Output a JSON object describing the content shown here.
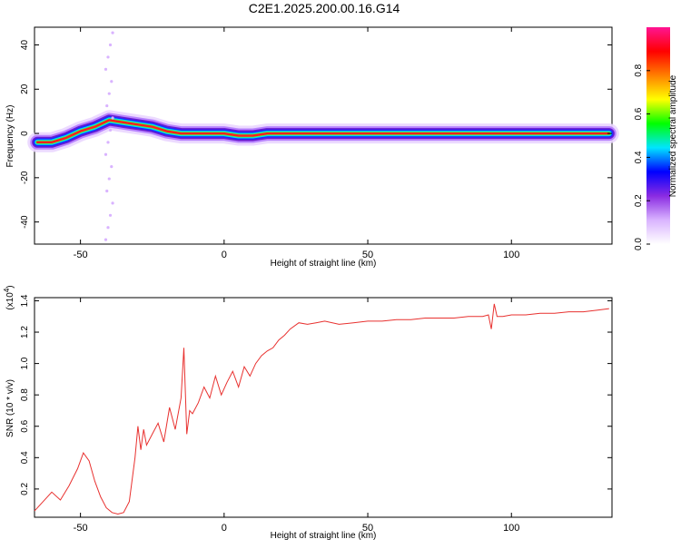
{
  "title": "C2E1.2025.200.00.16.G14",
  "chart_data": [
    {
      "type": "heatmap",
      "xlabel": "Height of straight line (km)",
      "ylabel": "Frequency (Hz)",
      "xlim": [
        -66,
        135
      ],
      "ylim": [
        -50,
        48
      ],
      "xticks": [
        "-50",
        "0",
        "50",
        "100"
      ],
      "xtick_values": [
        -50,
        0,
        50,
        100
      ],
      "yticks": [
        "40",
        "20",
        "0",
        "-20",
        "-40"
      ],
      "ytick_values": [
        40,
        20,
        0,
        -20,
        -40
      ],
      "ridge": {
        "x": [
          -65,
          -60,
          -55,
          -50,
          -45,
          -40,
          -35,
          -30,
          -25,
          -20,
          -15,
          -10,
          -5,
          0,
          5,
          10,
          15,
          20,
          30,
          50,
          80,
          100,
          134
        ],
        "y": [
          -4,
          -4,
          -2,
          1,
          3,
          6,
          5,
          4,
          3,
          1,
          0,
          0,
          0,
          0,
          -1,
          -1,
          0,
          0,
          0,
          0,
          0,
          0,
          0
        ]
      },
      "colorbar": {
        "label": "Normalized spectral amplitude",
        "ticks": [
          "0.0",
          "0.2",
          "0.4",
          "0.6",
          "0.8"
        ],
        "tick_values": [
          0.0,
          0.2,
          0.4,
          0.6,
          0.8
        ],
        "range": [
          0,
          1
        ],
        "colors": [
          "#ffffff",
          "#d9b3ff",
          "#8a2be2",
          "#0000ff",
          "#00e5ff",
          "#00ff00",
          "#ffff00",
          "#ff7f00",
          "#ff0000",
          "#ff1493"
        ]
      }
    },
    {
      "type": "line",
      "xlabel": "Height of straight line (km)",
      "ylabel": "SNR (10 * v/v)",
      "scale_label": "(x10",
      "scale_exp": "4",
      "xlim": [
        -66,
        135
      ],
      "ylim": [
        0.02,
        1.42
      ],
      "xticks": [
        "-50",
        "0",
        "50",
        "100"
      ],
      "xtick_values": [
        -50,
        0,
        50,
        100
      ],
      "yticks": [
        "0.2",
        "0.4",
        "0.6",
        "0.8",
        "1.0",
        "1.2",
        "1.4"
      ],
      "ytick_values": [
        0.2,
        0.4,
        0.6,
        0.8,
        1.0,
        1.2,
        1.4
      ],
      "series": [
        {
          "color": "#e8312f",
          "x": [
            -66,
            -63,
            -60,
            -57,
            -54,
            -51,
            -49,
            -47,
            -45,
            -43,
            -41,
            -39,
            -37,
            -35,
            -33,
            -31,
            -30,
            -29,
            -28,
            -27,
            -25,
            -23,
            -21,
            -19,
            -17,
            -15,
            -14,
            -13,
            -12,
            -11,
            -9,
            -7,
            -5,
            -3,
            -1,
            1,
            3,
            5,
            7,
            9,
            11,
            13,
            15,
            17,
            19,
            21,
            23,
            26,
            29,
            32,
            35,
            40,
            45,
            50,
            55,
            60,
            65,
            70,
            75,
            80,
            85,
            90,
            92,
            93,
            94,
            95,
            97,
            100,
            105,
            110,
            115,
            120,
            125,
            130,
            134
          ],
          "y": [
            0.06,
            0.12,
            0.18,
            0.13,
            0.22,
            0.33,
            0.43,
            0.38,
            0.25,
            0.15,
            0.08,
            0.05,
            0.04,
            0.05,
            0.12,
            0.4,
            0.6,
            0.45,
            0.58,
            0.48,
            0.55,
            0.62,
            0.5,
            0.72,
            0.58,
            0.78,
            1.1,
            0.55,
            0.7,
            0.68,
            0.75,
            0.85,
            0.78,
            0.92,
            0.8,
            0.88,
            0.95,
            0.85,
            0.98,
            0.92,
            1.0,
            1.05,
            1.08,
            1.1,
            1.15,
            1.18,
            1.22,
            1.26,
            1.25,
            1.26,
            1.27,
            1.25,
            1.26,
            1.27,
            1.27,
            1.28,
            1.28,
            1.29,
            1.29,
            1.29,
            1.3,
            1.3,
            1.31,
            1.22,
            1.38,
            1.3,
            1.3,
            1.31,
            1.31,
            1.32,
            1.32,
            1.33,
            1.33,
            1.34,
            1.35
          ]
        }
      ]
    }
  ]
}
